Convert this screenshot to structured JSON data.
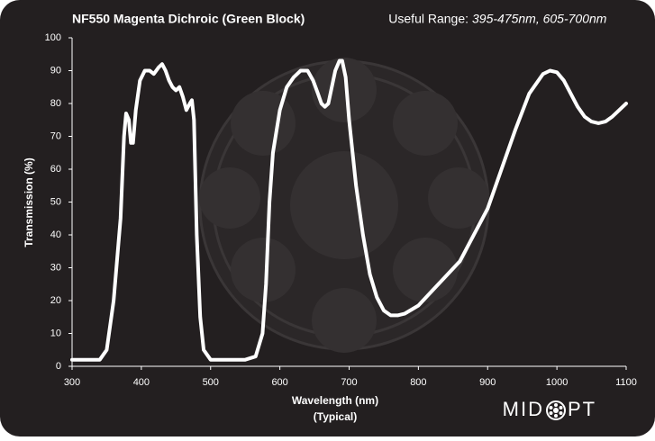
{
  "chart_data": {
    "type": "line",
    "title": "NF550 Magenta Dichroic (Green Block)",
    "subtitle_label": "Useful Range:",
    "subtitle_value": "395-475nm, 605-700nm",
    "x_label": "Wavelength (nm)",
    "x_label_note": "(Typical)",
    "y_label": "Transmission (%)",
    "logo_left": "MID",
    "logo_right": "PT",
    "color": "#ffffff",
    "x": [
      300,
      340,
      350,
      360,
      370,
      375,
      378,
      382,
      385,
      388,
      392,
      398,
      405,
      412,
      418,
      425,
      430,
      435,
      440,
      445,
      450,
      455,
      460,
      465,
      470,
      473,
      476,
      480,
      485,
      490,
      500,
      550,
      565,
      575,
      580,
      585,
      590,
      600,
      610,
      620,
      630,
      640,
      648,
      655,
      660,
      665,
      670,
      675,
      680,
      686,
      690,
      695,
      700,
      710,
      720,
      730,
      740,
      750,
      760,
      770,
      780,
      800,
      820,
      840,
      860,
      870,
      880,
      900,
      920,
      940,
      960,
      980,
      990,
      1000,
      1010,
      1020,
      1030,
      1040,
      1050,
      1060,
      1070,
      1080,
      1090,
      1100
    ],
    "values": [
      2,
      2,
      5,
      20,
      45,
      70,
      77,
      75,
      68,
      68,
      78,
      87,
      90,
      90,
      89,
      91,
      92,
      90,
      87,
      85,
      84,
      85,
      82,
      78,
      80,
      81,
      75,
      40,
      15,
      5,
      2,
      2,
      3,
      10,
      25,
      50,
      65,
      78,
      85,
      88,
      90,
      90,
      87,
      83,
      80,
      79,
      80,
      85,
      90,
      93,
      93,
      88,
      75,
      55,
      40,
      28,
      21,
      17,
      15.5,
      15.5,
      16,
      18.5,
      23,
      27.5,
      32,
      36,
      40,
      48,
      60,
      72,
      83,
      89,
      90,
      89.5,
      87,
      83,
      79,
      76,
      74.5,
      74,
      74.5,
      76,
      78,
      80
    ],
    "xlim": [
      300,
      1100
    ],
    "ylim": [
      0,
      100
    ],
    "xticks": [
      300,
      400,
      500,
      600,
      700,
      800,
      900,
      1000,
      1100
    ],
    "yticks": [
      0,
      10,
      20,
      30,
      40,
      50,
      60,
      70,
      80,
      90,
      100
    ],
    "grid": false
  }
}
